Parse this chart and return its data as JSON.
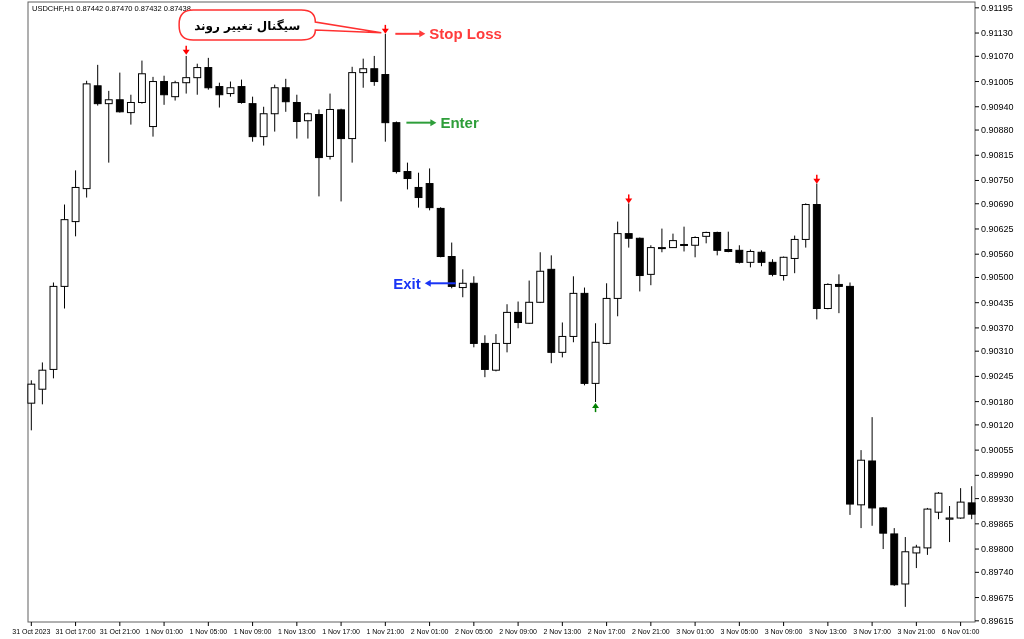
{
  "chart_data": {
    "type": "candlestick",
    "title": "USDCHF,H1  0.87442 0.87470 0.87432 0.87438",
    "categories": [
      "31 Oct 2023",
      null,
      null,
      null,
      "31 Oct 17:00",
      null,
      null,
      null,
      "31 Oct 21:00",
      null,
      null,
      null,
      "1 Nov 01:00",
      null,
      null,
      null,
      "1 Nov 05:00",
      null,
      null,
      null,
      "1 Nov 09:00",
      null,
      null,
      null,
      "1 Nov 13:00",
      null,
      null,
      null,
      "1 Nov 17:00",
      null,
      null,
      null,
      "1 Nov 21:00",
      null,
      null,
      null,
      "2 Nov 01:00",
      null,
      null,
      null,
      "2 Nov 05:00",
      null,
      null,
      null,
      "2 Nov 09:00",
      null,
      null,
      null,
      "2 Nov 13:00",
      null,
      null,
      null,
      "2 Nov 17:00",
      null,
      null,
      null,
      "2 Nov 21:00",
      null,
      null,
      null,
      "3 Nov 01:00",
      null,
      null,
      null,
      "3 Nov 05:00",
      null,
      null,
      null,
      "3 Nov 09:00",
      null,
      null,
      null,
      "3 Nov 13:00",
      null,
      null,
      null,
      "3 Nov 17:00",
      null,
      null,
      null,
      "3 Nov 21:00",
      null,
      null,
      null,
      "6 Nov 01:00",
      null
    ],
    "ohlc": [
      [
        0.90176,
        0.90235,
        0.90106,
        0.90225
      ],
      [
        0.90212,
        0.90281,
        0.90173,
        0.90261
      ],
      [
        0.90263,
        0.90487,
        0.9024,
        0.90477
      ],
      [
        0.90477,
        0.90688,
        0.9042,
        0.90649
      ],
      [
        0.90644,
        0.90776,
        0.90606,
        0.90732
      ],
      [
        0.90729,
        0.91007,
        0.90706,
        0.90999
      ],
      [
        0.90994,
        0.91048,
        0.90943,
        0.90948
      ],
      [
        0.90948,
        0.90981,
        0.90796,
        0.90958
      ],
      [
        0.90958,
        0.91028,
        0.90925,
        0.90927
      ],
      [
        0.90925,
        0.90971,
        0.90894,
        0.90951
      ],
      [
        0.90951,
        0.91059,
        0.90948,
        0.91025
      ],
      [
        0.90889,
        0.91017,
        0.90863,
        0.91005
      ],
      [
        0.91005,
        0.9102,
        0.90945,
        0.90971
      ],
      [
        0.90966,
        0.91007,
        0.90956,
        0.91002
      ],
      [
        0.91002,
        0.91071,
        0.90974,
        0.91015
      ],
      [
        0.91015,
        0.91051,
        0.90971,
        0.91041
      ],
      [
        0.91041,
        0.91066,
        0.90984,
        0.90989
      ],
      [
        0.90992,
        0.91002,
        0.90938,
        0.90971
      ],
      [
        0.90974,
        0.91005,
        0.90966,
        0.90989
      ],
      [
        0.90992,
        0.9101,
        0.90948,
        0.90951
      ],
      [
        0.90948,
        0.90966,
        0.9085,
        0.90863
      ],
      [
        0.90863,
        0.9094,
        0.9084,
        0.90922
      ],
      [
        0.90922,
        0.90997,
        0.90876,
        0.90989
      ],
      [
        0.90989,
        0.91012,
        0.90927,
        0.90953
      ],
      [
        0.90951,
        0.90971,
        0.90858,
        0.90902
      ],
      [
        0.90904,
        0.90925,
        0.90858,
        0.90922
      ],
      [
        0.9092,
        0.90933,
        0.90709,
        0.90809
      ],
      [
        0.90812,
        0.90974,
        0.90804,
        0.90933
      ],
      [
        0.90932,
        0.90935,
        0.90696,
        0.90858
      ],
      [
        0.90858,
        0.91043,
        0.90796,
        0.91028
      ],
      [
        0.91028,
        0.91064,
        0.90989,
        0.91038
      ],
      [
        0.91038,
        0.91071,
        0.90994,
        0.91005
      ],
      [
        0.91023,
        0.91128,
        0.9085,
        0.90899
      ],
      [
        0.90899,
        0.90902,
        0.90768,
        0.90773
      ],
      [
        0.90773,
        0.90796,
        0.90727,
        0.90755
      ],
      [
        0.90732,
        0.9077,
        0.9068,
        0.90706
      ],
      [
        0.90742,
        0.90781,
        0.90673,
        0.9068
      ],
      [
        0.90678,
        0.90681,
        0.90552,
        0.90554
      ],
      [
        0.90554,
        0.9059,
        0.90472,
        0.90477
      ],
      [
        0.90474,
        0.90521,
        0.90449,
        0.90485
      ],
      [
        0.90485,
        0.90503,
        0.9032,
        0.9033
      ],
      [
        0.9033,
        0.90351,
        0.90243,
        0.90263
      ],
      [
        0.90261,
        0.90354,
        0.90258,
        0.9033
      ],
      [
        0.9033,
        0.90431,
        0.90307,
        0.9041
      ],
      [
        0.9041,
        0.90438,
        0.90369,
        0.90384
      ],
      [
        0.90382,
        0.90492,
        0.9038,
        0.90436
      ],
      [
        0.90436,
        0.90565,
        0.90434,
        0.90516
      ],
      [
        0.90521,
        0.90557,
        0.90279,
        0.90307
      ],
      [
        0.90307,
        0.90384,
        0.90294,
        0.90348
      ],
      [
        0.90348,
        0.90503,
        0.90333,
        0.90459
      ],
      [
        0.90459,
        0.90474,
        0.90222,
        0.90227
      ],
      [
        0.90227,
        0.90382,
        0.90179,
        0.90333
      ],
      [
        0.9033,
        0.90485,
        0.90328,
        0.90446
      ],
      [
        0.90446,
        0.90644,
        0.904,
        0.90613
      ],
      [
        0.90613,
        0.90691,
        0.90577,
        0.90601
      ],
      [
        0.90601,
        0.90603,
        0.90464,
        0.90505
      ],
      [
        0.90508,
        0.90583,
        0.9048,
        0.90577
      ],
      [
        0.90575,
        0.90626,
        0.90565,
        0.90577
      ],
      [
        0.90577,
        0.90613,
        0.90576,
        0.90595
      ],
      [
        0.90583,
        0.90631,
        0.90567,
        0.90585
      ],
      [
        0.90583,
        0.90606,
        0.90552,
        0.90603
      ],
      [
        0.90606,
        0.90618,
        0.90588,
        0.90616
      ],
      [
        0.90616,
        0.90618,
        0.90557,
        0.9057
      ],
      [
        0.90572,
        0.90618,
        0.90565,
        0.90567
      ],
      [
        0.9057,
        0.90583,
        0.90536,
        0.90539
      ],
      [
        0.90539,
        0.90572,
        0.90526,
        0.90567
      ],
      [
        0.90565,
        0.9057,
        0.90529,
        0.90539
      ],
      [
        0.90539,
        0.90547,
        0.90503,
        0.90508
      ],
      [
        0.90505,
        0.90554,
        0.90492,
        0.90552
      ],
      [
        0.90549,
        0.90608,
        0.90511,
        0.90598
      ],
      [
        0.90598,
        0.90691,
        0.90577,
        0.90688
      ],
      [
        0.90688,
        0.90742,
        0.90392,
        0.9042
      ],
      [
        0.9042,
        0.90485,
        0.90418,
        0.90482
      ],
      [
        0.90482,
        0.90508,
        0.90408,
        0.90477
      ],
      [
        0.90477,
        0.90487,
        0.89888,
        0.89916
      ],
      [
        0.89914,
        0.90055,
        0.89854,
        0.90029
      ],
      [
        0.90027,
        0.9014,
        0.8986,
        0.89906
      ],
      [
        0.89906,
        0.89908,
        0.898,
        0.89841
      ],
      [
        0.89839,
        0.89854,
        0.89705,
        0.89708
      ],
      [
        0.8971,
        0.89831,
        0.89651,
        0.89793
      ],
      [
        0.8979,
        0.89811,
        0.89751,
        0.89805
      ],
      [
        0.89803,
        0.89906,
        0.89785,
        0.89903
      ],
      [
        0.89895,
        0.89947,
        0.89877,
        0.89944
      ],
      [
        0.89877,
        0.89911,
        0.89818,
        0.8988
      ],
      [
        0.8988,
        0.89957,
        0.89878,
        0.89921
      ],
      [
        0.89919,
        0.89962,
        0.89877,
        0.8989
      ]
    ],
    "series": [
      {
        "type": "scatter",
        "color": "#ff0000",
        "marker": "triangle",
        "values": [
          null,
          null,
          null,
          null,
          null,
          null,
          null,
          null,
          null,
          null,
          null,
          null,
          null,
          null,
          0.91079,
          null,
          null,
          null,
          null,
          null,
          null,
          null,
          null,
          null,
          null,
          null,
          null,
          null,
          null,
          null,
          null,
          null,
          0.91133,
          null,
          null,
          null,
          null,
          null,
          null,
          null,
          null,
          null,
          null,
          null,
          null,
          null,
          null,
          null,
          null,
          null,
          null,
          null,
          null,
          null,
          0.90696,
          null,
          null,
          null,
          null,
          null,
          null,
          null,
          null,
          null,
          null,
          null,
          null,
          null,
          null,
          null,
          null,
          0.90747,
          null,
          null,
          null,
          null,
          null,
          null,
          null,
          null,
          null,
          null,
          null,
          null,
          null,
          null
        ]
      },
      {
        "type": "scatter",
        "color": "#008000",
        "marker": "triangle",
        "values": [
          null,
          null,
          null,
          null,
          null,
          null,
          null,
          null,
          null,
          null,
          null,
          null,
          null,
          null,
          null,
          null,
          null,
          null,
          null,
          null,
          null,
          null,
          null,
          null,
          null,
          null,
          null,
          null,
          null,
          null,
          null,
          null,
          null,
          null,
          null,
          null,
          null,
          null,
          null,
          null,
          null,
          null,
          null,
          null,
          null,
          null,
          null,
          null,
          null,
          null,
          null,
          0.90171,
          null,
          null,
          null,
          null,
          null,
          null,
          null,
          null,
          null,
          null,
          null,
          null,
          null,
          null,
          null,
          null,
          null,
          null,
          null,
          null,
          null,
          null,
          null,
          null,
          null,
          null,
          null,
          null,
          null,
          null,
          null,
          null,
          null,
          null
        ]
      }
    ],
    "ylim": [
      0.89612,
      0.9121
    ],
    "yticks": [
      {
        "value": 0.91195,
        "label": "0.91195"
      },
      {
        "value": 0.9113,
        "label": "0.91130"
      },
      {
        "value": 0.9107,
        "label": "0.91070"
      },
      {
        "value": 0.91005,
        "label": "0.91005"
      },
      {
        "value": 0.9094,
        "label": "0.90940"
      },
      {
        "value": 0.9088,
        "label": "0.90880"
      },
      {
        "value": 0.90815,
        "label": "0.90815"
      },
      {
        "value": 0.9075,
        "label": "0.90750"
      },
      {
        "value": 0.9069,
        "label": "0.90690"
      },
      {
        "value": 0.90625,
        "label": "0.90625"
      },
      {
        "value": 0.9056,
        "label": "0.90560"
      },
      {
        "value": 0.905,
        "label": "0.90500"
      },
      {
        "value": 0.90435,
        "label": "0.90435"
      },
      {
        "value": 0.9037,
        "label": "0.90370"
      },
      {
        "value": 0.9031,
        "label": "0.90310"
      },
      {
        "value": 0.90245,
        "label": "0.90245"
      },
      {
        "value": 0.9018,
        "label": "0.90180"
      },
      {
        "value": 0.9012,
        "label": "0.90120"
      },
      {
        "value": 0.90055,
        "label": "0.90055"
      },
      {
        "value": 0.8999,
        "label": "0.89990"
      },
      {
        "value": 0.8993,
        "label": "0.89930"
      },
      {
        "value": 0.89865,
        "label": "0.89865"
      },
      {
        "value": 0.898,
        "label": "0.89800"
      },
      {
        "value": 0.8974,
        "label": "0.89740"
      },
      {
        "value": 0.89675,
        "label": "0.89675"
      },
      {
        "value": 0.89615,
        "label": "0.89615"
      }
    ],
    "annotations": [
      {
        "text": "سیگنال تغییر روند"
      },
      "Stop Loss",
      "Enter",
      "Exit"
    ]
  }
}
